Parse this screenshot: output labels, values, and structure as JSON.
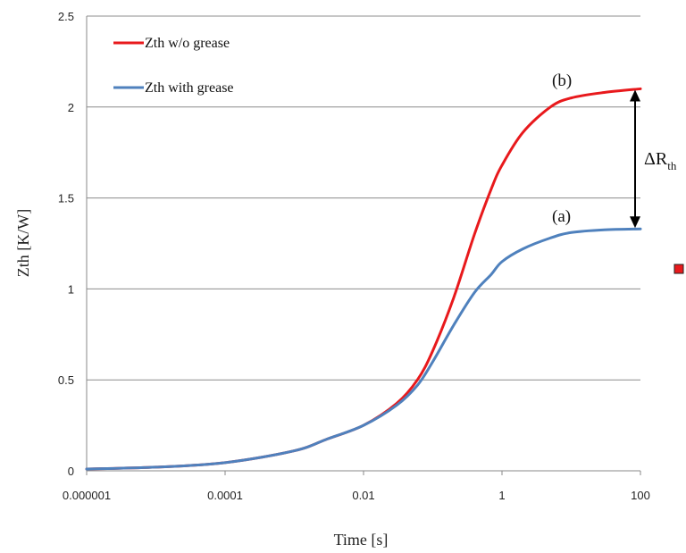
{
  "chart_data": {
    "type": "line",
    "title": "",
    "xlabel": "Time [s]",
    "ylabel": "Zth [K/W]",
    "xscale": "log",
    "xlim": [
      1e-06,
      100
    ],
    "ylim": [
      0,
      2.5
    ],
    "xticks": [
      "0.000001",
      "0.0001",
      "0.01",
      "1",
      "100"
    ],
    "yticks": [
      "0",
      "0.5",
      "1",
      "1.5",
      "2",
      "2.5"
    ],
    "grid": "horizontal",
    "legend_position": "top-left",
    "series": [
      {
        "name": "Zth w/o grease",
        "color": "#e8191c",
        "x": [
          1e-06,
          1e-05,
          0.0001,
          0.001,
          0.003,
          0.01,
          0.03,
          0.06,
          0.1,
          0.2,
          0.4,
          0.7,
          1,
          2,
          5,
          10,
          30,
          100
        ],
        "y": [
          0.01,
          0.02,
          0.045,
          0.11,
          0.175,
          0.25,
          0.37,
          0.5,
          0.66,
          0.95,
          1.3,
          1.55,
          1.68,
          1.86,
          2.0,
          2.05,
          2.08,
          2.1
        ]
      },
      {
        "name": "Zth with grease",
        "color": "#4f81bd",
        "x": [
          1e-06,
          1e-05,
          0.0001,
          0.001,
          0.003,
          0.01,
          0.03,
          0.06,
          0.1,
          0.2,
          0.4,
          0.7,
          1,
          2,
          5,
          10,
          30,
          100
        ],
        "y": [
          0.01,
          0.02,
          0.045,
          0.11,
          0.175,
          0.25,
          0.36,
          0.47,
          0.6,
          0.8,
          0.98,
          1.08,
          1.15,
          1.22,
          1.28,
          1.31,
          1.325,
          1.33
        ]
      }
    ],
    "annotations": [
      {
        "label": "(b)",
        "x": 10,
        "y": 2.1
      },
      {
        "label": "(a)",
        "x": 10,
        "y": 1.33
      }
    ],
    "delta": {
      "symbol": "ΔR",
      "subscript": "th",
      "x": 100,
      "y_from": 1.33,
      "y_to": 2.1
    }
  }
}
